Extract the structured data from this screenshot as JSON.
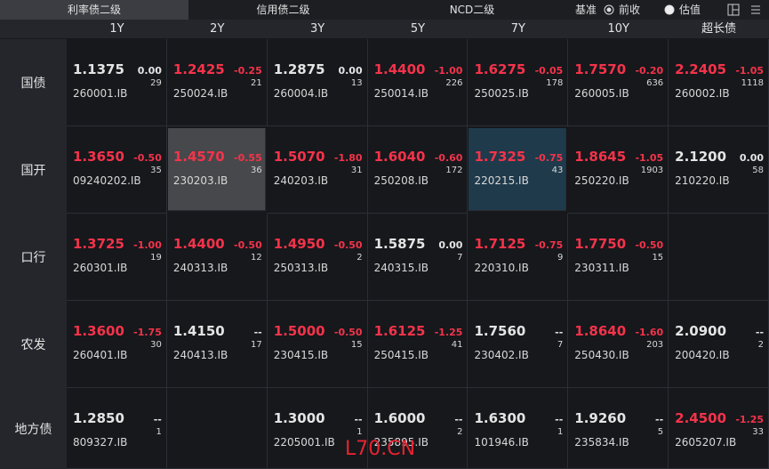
{
  "tabs": [
    "利率债二级",
    "信用债二级",
    "NCD二级"
  ],
  "controls": {
    "basis_label": "基准",
    "options": [
      "前收",
      "估值"
    ]
  },
  "table": {
    "columns": [
      "1Y",
      "2Y",
      "3Y",
      "5Y",
      "7Y",
      "10Y",
      "超长债"
    ],
    "rows": [
      {
        "label": "国债",
        "cells": [
          {
            "rate": "1.1375",
            "change": "0.00",
            "count": "29",
            "code": "260001.IB"
          },
          {
            "rate": "1.2425",
            "change": "-0.25",
            "count": "21",
            "code": "250024.IB"
          },
          {
            "rate": "1.2875",
            "change": "0.00",
            "count": "13",
            "code": "260004.IB"
          },
          {
            "rate": "1.4400",
            "change": "-1.00",
            "count": "226",
            "code": "250014.IB"
          },
          {
            "rate": "1.6275",
            "change": "-0.05",
            "count": "178",
            "code": "250025.IB"
          },
          {
            "rate": "1.7570",
            "change": "-0.20",
            "count": "636",
            "code": "260005.IB"
          },
          {
            "rate": "2.2405",
            "change": "-1.05",
            "count": "1118",
            "code": "260002.IB"
          }
        ]
      },
      {
        "label": "国开",
        "cells": [
          {
            "rate": "1.3650",
            "change": "-0.50",
            "count": "35",
            "code": "09240202.IB"
          },
          {
            "rate": "1.4570",
            "change": "-0.55",
            "count": "36",
            "code": "230203.IB"
          },
          {
            "rate": "1.5070",
            "change": "-1.80",
            "count": "31",
            "code": "240203.IB"
          },
          {
            "rate": "1.6040",
            "change": "-0.60",
            "count": "172",
            "code": "250208.IB"
          },
          {
            "rate": "1.7325",
            "change": "-0.75",
            "count": "43",
            "code": "220215.IB"
          },
          {
            "rate": "1.8645",
            "change": "-1.05",
            "count": "1903",
            "code": "250220.IB"
          },
          {
            "rate": "2.1200",
            "change": "0.00",
            "count": "58",
            "code": "210220.IB"
          }
        ]
      },
      {
        "label": "口行",
        "cells": [
          {
            "rate": "1.3725",
            "change": "-1.00",
            "count": "19",
            "code": "260301.IB"
          },
          {
            "rate": "1.4400",
            "change": "-0.50",
            "count": "12",
            "code": "240313.IB"
          },
          {
            "rate": "1.4950",
            "change": "-0.50",
            "count": "2",
            "code": "250313.IB"
          },
          {
            "rate": "1.5875",
            "change": "0.00",
            "count": "7",
            "code": "240315.IB"
          },
          {
            "rate": "1.7125",
            "change": "-0.75",
            "count": "9",
            "code": "220310.IB"
          },
          {
            "rate": "1.7750",
            "change": "-0.50",
            "count": "15",
            "code": "230311.IB"
          },
          null
        ]
      },
      {
        "label": "农发",
        "cells": [
          {
            "rate": "1.3600",
            "change": "-1.75",
            "count": "30",
            "code": "260401.IB"
          },
          {
            "rate": "1.4150",
            "change": "--",
            "count": "17",
            "code": "240413.IB"
          },
          {
            "rate": "1.5000",
            "change": "-0.50",
            "count": "15",
            "code": "230415.IB"
          },
          {
            "rate": "1.6125",
            "change": "-1.25",
            "count": "41",
            "code": "250415.IB"
          },
          {
            "rate": "1.7560",
            "change": "--",
            "count": "7",
            "code": "230402.IB"
          },
          {
            "rate": "1.8640",
            "change": "-1.60",
            "count": "203",
            "code": "250430.IB"
          },
          {
            "rate": "2.0900",
            "change": "--",
            "count": "2",
            "code": "200420.IB"
          }
        ]
      },
      {
        "label": "地方债",
        "cells": [
          {
            "rate": "1.2850",
            "change": "--",
            "count": "1",
            "code": "809327.IB"
          },
          null,
          {
            "rate": "1.3000",
            "change": "--",
            "count": "1",
            "code": "2205001.IB"
          },
          {
            "rate": "1.6000",
            "change": "--",
            "count": "2",
            "code": "235895.IB"
          },
          {
            "rate": "1.6300",
            "change": "--",
            "count": "1",
            "code": "101946.IB"
          },
          {
            "rate": "1.9260",
            "change": "--",
            "count": "5",
            "code": "235834.IB"
          },
          {
            "rate": "2.4500",
            "change": "-1.25",
            "count": "33",
            "code": "2605207.IB"
          }
        ]
      }
    ]
  },
  "watermark": "L70.CN"
}
